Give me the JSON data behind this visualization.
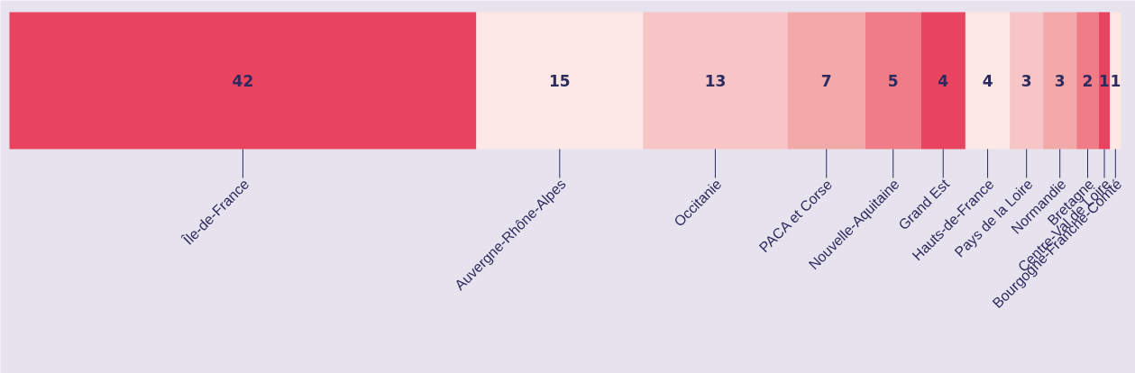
{
  "chart_data": {
    "type": "bar",
    "orientation": "horizontal",
    "stacked": true,
    "data_labels": true,
    "categories": [
      null
    ],
    "series": [
      {
        "name": "Île-de-France",
        "color": "#e8435f",
        "values": [
          42
        ]
      },
      {
        "name": "Auvergne-Rhône-Alpes",
        "color": "#fde8e6",
        "values": [
          15
        ]
      },
      {
        "name": "Occitanie",
        "color": "#f7c5c5",
        "values": [
          13
        ]
      },
      {
        "name": "PACA et Corse",
        "color": "#f3a9aa",
        "values": [
          7
        ]
      },
      {
        "name": "Nouvelle-Aquitaine",
        "color": "#f07c87",
        "values": [
          5
        ]
      },
      {
        "name": "Grand Est",
        "color": "#e8435f",
        "values": [
          4
        ]
      },
      {
        "name": "Hauts-de-France",
        "color": "#fde8e6",
        "values": [
          4
        ]
      },
      {
        "name": "Pays de la Loire",
        "color": "#f7c5c5",
        "values": [
          3
        ]
      },
      {
        "name": "Normandie",
        "color": "#f3a9aa",
        "values": [
          3
        ]
      },
      {
        "name": "Bretagne",
        "color": "#f07c87",
        "values": [
          2
        ]
      },
      {
        "name": "Centre-Val de Loire",
        "color": "#e8435f",
        "values": [
          1
        ]
      },
      {
        "name": "Bourgogne-Franche-Comté",
        "color": "#fde8e6",
        "values": [
          1
        ]
      }
    ]
  }
}
